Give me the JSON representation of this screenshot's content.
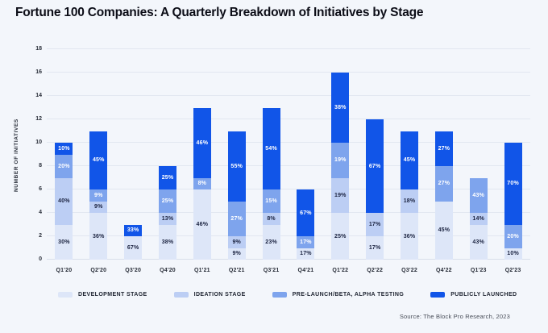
{
  "colors": {
    "background": "#f3f6fb",
    "gridline": "#e2e7f0",
    "title_text": "#0c0d17",
    "axis_text": "#2a2f3a"
  },
  "chart_data": {
    "type": "bar",
    "stacked": true,
    "title": "Fortune 100 Companies: A Quarterly Breakdown of Initiatives by Stage",
    "ylabel": "NUMBER OF INITIATIVES",
    "ylim": [
      0,
      18
    ],
    "ytick_step": 2,
    "grid": true,
    "legend_position": "bottom",
    "source": "Source: The Block Pro Research, 2023",
    "categories": [
      "Q1'20",
      "Q2'20",
      "Q3'20",
      "Q4'20",
      "Q1'21",
      "Q2'21",
      "Q3'21",
      "Q4'21",
      "Q1'22",
      "Q2'22",
      "Q3'22",
      "Q4'22",
      "Q1'23",
      "Q2'23"
    ],
    "totals": [
      10,
      11,
      3,
      8,
      13,
      11,
      13,
      6,
      16,
      12,
      11,
      11,
      7,
      10
    ],
    "series": [
      {
        "name": "DEVELOPMENT STAGE",
        "color": "#dde6f8",
        "label_color": "#1b2340",
        "values": [
          3,
          4,
          2,
          3,
          6,
          1,
          3,
          1,
          4,
          2,
          4,
          5,
          3,
          1
        ],
        "labels": [
          "30%",
          "36%",
          "67%",
          "38%",
          "46%",
          "9%",
          "23%",
          "17%",
          "25%",
          "17%",
          "36%",
          "45%",
          "43%",
          "10%"
        ]
      },
      {
        "name": "IDEATION STAGE",
        "color": "#bccef4",
        "label_color": "#1b2340",
        "values": [
          4,
          1,
          0,
          1,
          0,
          1,
          1,
          0,
          3,
          2,
          2,
          0,
          1,
          0
        ],
        "labels": [
          "40%",
          "9%",
          "",
          "13%",
          "",
          "9%",
          "8%",
          "",
          "19%",
          "17%",
          "18%",
          "",
          "14%",
          ""
        ]
      },
      {
        "name": "PRE-LAUNCH/BETA, ALPHA TESTING",
        "color": "#7ea4ed",
        "label_color": "#ffffff",
        "values": [
          2,
          1,
          0,
          2,
          1,
          3,
          2,
          1,
          3,
          0,
          0,
          3,
          3,
          2
        ],
        "labels": [
          "20%",
          "9%",
          "",
          "25%",
          "8%",
          "27%",
          "15%",
          "17%",
          "19%",
          "",
          "",
          "27%",
          "43%",
          "20%"
        ]
      },
      {
        "name": "PUBLICLY LAUNCHED",
        "color": "#1155e8",
        "label_color": "#ffffff",
        "values": [
          1,
          5,
          1,
          2,
          6,
          6,
          7,
          4,
          6,
          8,
          5,
          3,
          0,
          7
        ],
        "labels": [
          "10%",
          "45%",
          "33%",
          "25%",
          "46%",
          "55%",
          "54%",
          "67%",
          "38%",
          "67%",
          "45%",
          "27%",
          "",
          "70%"
        ]
      }
    ]
  }
}
